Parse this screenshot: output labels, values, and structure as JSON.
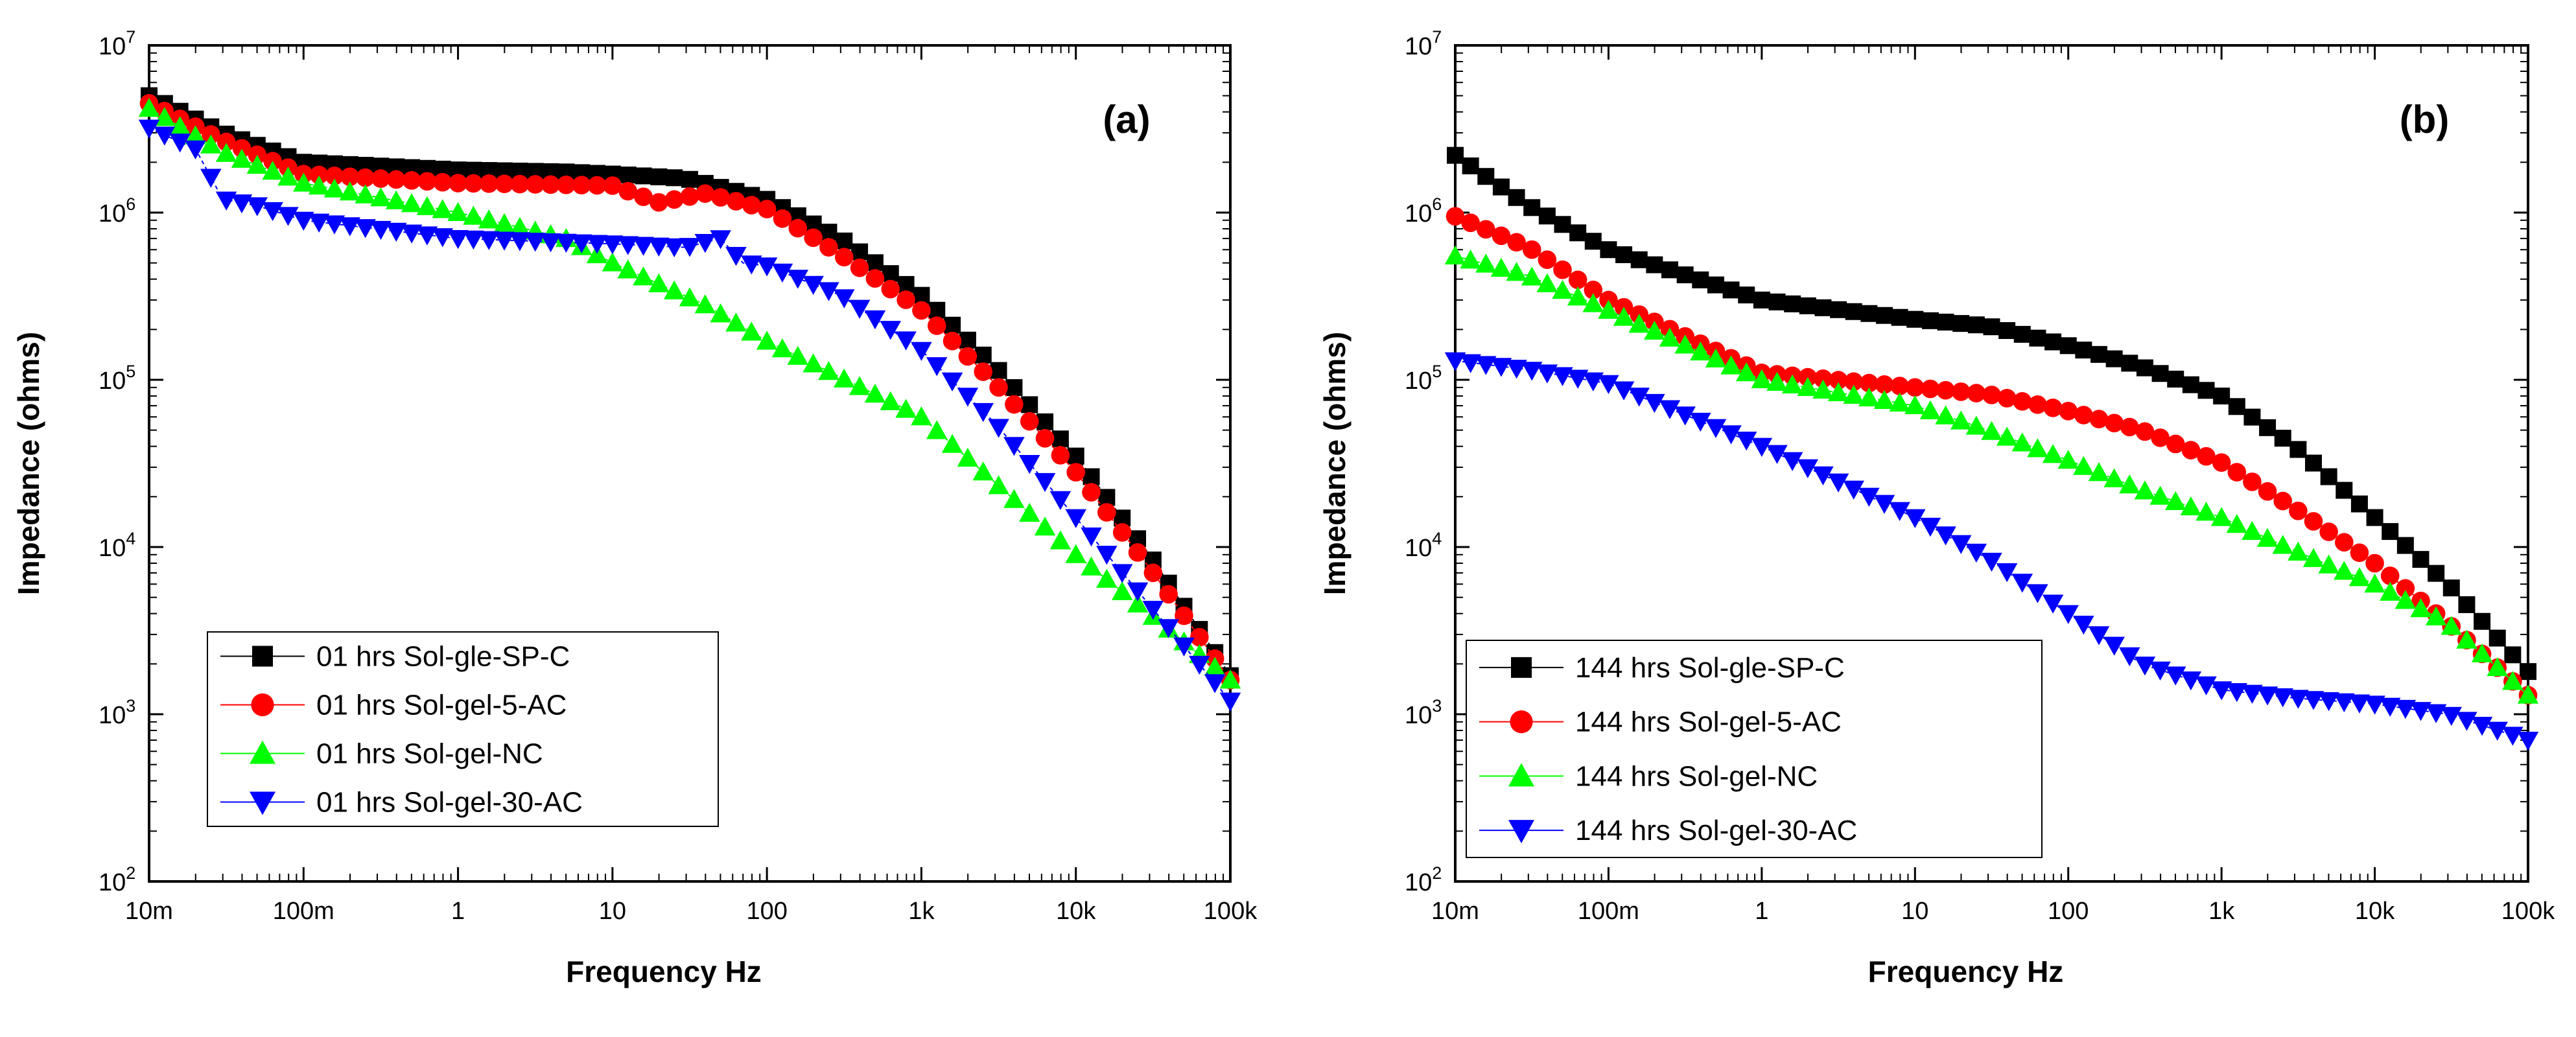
{
  "colors": {
    "sp_c": "#000000",
    "ac5": "#ff0000",
    "nc": "#00ff00",
    "ac30": "#0000ff"
  },
  "chart_data": [
    {
      "type": "scatter",
      "panel_label": "(a)",
      "xlabel": "Frequency  Hz",
      "ylabel": "Impedance (ohms)",
      "x_scale": "log",
      "y_scale": "log",
      "xlim": [
        0.01,
        100000
      ],
      "ylim": [
        100,
        10000000
      ],
      "x_ticks": [
        {
          "value": 0.01,
          "label": "10m"
        },
        {
          "value": 0.1,
          "label": "100m"
        },
        {
          "value": 1,
          "label": "1"
        },
        {
          "value": 10,
          "label": "10"
        },
        {
          "value": 100,
          "label": "100"
        },
        {
          "value": 1000,
          "label": "1k"
        },
        {
          "value": 10000,
          "label": "10k"
        },
        {
          "value": 100000,
          "label": "100k"
        }
      ],
      "y_ticks": [
        {
          "base": "10",
          "exp": "2",
          "value": 100
        },
        {
          "base": "10",
          "exp": "3",
          "value": 1000
        },
        {
          "base": "10",
          "exp": "4",
          "value": 10000
        },
        {
          "base": "10",
          "exp": "5",
          "value": 100000
        },
        {
          "base": "10",
          "exp": "6",
          "value": 1000000
        },
        {
          "base": "10",
          "exp": "7",
          "value": 10000000
        }
      ],
      "legend_position": "bottom-left",
      "series": [
        {
          "name": "01 hrs Sol-gle-SP-C",
          "marker": "square",
          "color_key": "sp_c",
          "points": [
            [
              0.01,
              5000000
            ],
            [
              0.03,
              3000000
            ],
            [
              0.1,
              2000000
            ],
            [
              1,
              1800000
            ],
            [
              5,
              1750000
            ],
            [
              10,
              1700000
            ],
            [
              30,
              1600000
            ],
            [
              100,
              1200000
            ],
            [
              300,
              700000
            ],
            [
              1000,
              320000
            ],
            [
              3000,
              120000
            ],
            [
              10000,
              35000
            ],
            [
              30000,
              9000
            ],
            [
              100000,
              1700
            ]
          ]
        },
        {
          "name": "01 hrs Sol-gel-5-AC",
          "marker": "circle",
          "color_key": "ac5",
          "points": [
            [
              0.01,
              4500000
            ],
            [
              0.03,
              2700000
            ],
            [
              0.1,
              1700000
            ],
            [
              1,
              1500000
            ],
            [
              10,
              1450000
            ],
            [
              20,
              1150000
            ],
            [
              40,
              1300000
            ],
            [
              100,
              1050000
            ],
            [
              300,
              560000
            ],
            [
              1000,
              260000
            ],
            [
              3000,
              95000
            ],
            [
              10000,
              28000
            ],
            [
              30000,
              7500
            ],
            [
              100000,
              1600
            ]
          ]
        },
        {
          "name": "01 hrs Sol-gel-NC",
          "marker": "triangle-up",
          "color_key": "nc",
          "points": [
            [
              0.01,
              4200000
            ],
            [
              0.03,
              2300000
            ],
            [
              0.1,
              1500000
            ],
            [
              1,
              1000000
            ],
            [
              5,
              700000
            ],
            [
              10,
              500000
            ],
            [
              40,
              280000
            ],
            [
              100,
              170000
            ],
            [
              1000,
              60000
            ],
            [
              10000,
              9000
            ],
            [
              30000,
              4000
            ],
            [
              100000,
              1600
            ]
          ]
        },
        {
          "name": "01 hrs Sol-gel-30-AC",
          "marker": "triangle-down",
          "color_key": "ac30",
          "points": [
            [
              0.01,
              3200000
            ],
            [
              0.02,
              2400000
            ],
            [
              0.03,
              1200000
            ],
            [
              0.05,
              1100000
            ],
            [
              0.1,
              900000
            ],
            [
              1,
              700000
            ],
            [
              10,
              650000
            ],
            [
              30,
              620000
            ],
            [
              50,
              700000
            ],
            [
              70,
              500000
            ],
            [
              100,
              480000
            ],
            [
              300,
              320000
            ],
            [
              1000,
              150000
            ],
            [
              3000,
              55000
            ],
            [
              10000,
              15000
            ],
            [
              30000,
              4500
            ],
            [
              100000,
              1200
            ]
          ]
        }
      ]
    },
    {
      "type": "scatter",
      "panel_label": "(b)",
      "xlabel": "Frequency  Hz",
      "ylabel": "Impedance (ohms)",
      "x_scale": "log",
      "y_scale": "log",
      "xlim": [
        0.01,
        100000
      ],
      "ylim": [
        100,
        10000000
      ],
      "x_ticks": [
        {
          "value": 0.01,
          "label": "10m"
        },
        {
          "value": 0.1,
          "label": "100m"
        },
        {
          "value": 1,
          "label": "1"
        },
        {
          "value": 10,
          "label": "10"
        },
        {
          "value": 100,
          "label": "100"
        },
        {
          "value": 1000,
          "label": "1k"
        },
        {
          "value": 10000,
          "label": "10k"
        },
        {
          "value": 100000,
          "label": "100k"
        }
      ],
      "y_ticks": [
        {
          "base": "10",
          "exp": "2",
          "value": 100
        },
        {
          "base": "10",
          "exp": "3",
          "value": 1000
        },
        {
          "base": "10",
          "exp": "4",
          "value": 10000
        },
        {
          "base": "10",
          "exp": "5",
          "value": 100000
        },
        {
          "base": "10",
          "exp": "6",
          "value": 1000000
        },
        {
          "base": "10",
          "exp": "7",
          "value": 10000000
        }
      ],
      "legend_position": "bottom-left",
      "series": [
        {
          "name": "144 hrs Sol-gle-SP-C",
          "marker": "square",
          "color_key": "sp_c",
          "points": [
            [
              0.01,
              2200000
            ],
            [
              0.03,
              1100000
            ],
            [
              0.1,
              600000
            ],
            [
              1,
              300000
            ],
            [
              10,
              230000
            ],
            [
              30,
              210000
            ],
            [
              100,
              160000
            ],
            [
              300,
              120000
            ],
            [
              1000,
              80000
            ],
            [
              3000,
              40000
            ],
            [
              10000,
              15000
            ],
            [
              30000,
              6000
            ],
            [
              100000,
              1800
            ]
          ]
        },
        {
          "name": "144 hrs Sol-gel-5-AC",
          "marker": "circle",
          "color_key": "ac5",
          "points": [
            [
              0.01,
              950000
            ],
            [
              0.03,
              620000
            ],
            [
              0.1,
              300000
            ],
            [
              1,
              110000
            ],
            [
              10,
              90000
            ],
            [
              30,
              82000
            ],
            [
              100,
              65000
            ],
            [
              300,
              50000
            ],
            [
              1000,
              32000
            ],
            [
              3000,
              17000
            ],
            [
              10000,
              8000
            ],
            [
              30000,
              3500
            ],
            [
              100000,
              1300
            ]
          ]
        },
        {
          "name": "144 hrs Sol-gel-NC",
          "marker": "triangle-up",
          "color_key": "nc",
          "points": [
            [
              0.01,
              550000
            ],
            [
              0.03,
              420000
            ],
            [
              0.1,
              260000
            ],
            [
              1,
              100000
            ],
            [
              10,
              70000
            ],
            [
              30,
              50000
            ],
            [
              100,
              33000
            ],
            [
              300,
              22000
            ],
            [
              1000,
              15000
            ],
            [
              3000,
              9500
            ],
            [
              10000,
              6000
            ],
            [
              30000,
              3500
            ],
            [
              100000,
              1300
            ]
          ]
        },
        {
          "name": "144 hrs Sol-gel-30-AC",
          "marker": "triangle-down",
          "color_key": "ac30",
          "points": [
            [
              0.01,
              130000
            ],
            [
              0.03,
              115000
            ],
            [
              0.1,
              95000
            ],
            [
              1,
              40000
            ],
            [
              10,
              15000
            ],
            [
              30,
              8500
            ],
            [
              100,
              4000
            ],
            [
              300,
              2000
            ],
            [
              1000,
              1400
            ],
            [
              3000,
              1250
            ],
            [
              10000,
              1150
            ],
            [
              30000,
              1000
            ],
            [
              100000,
              700
            ]
          ]
        }
      ]
    }
  ]
}
